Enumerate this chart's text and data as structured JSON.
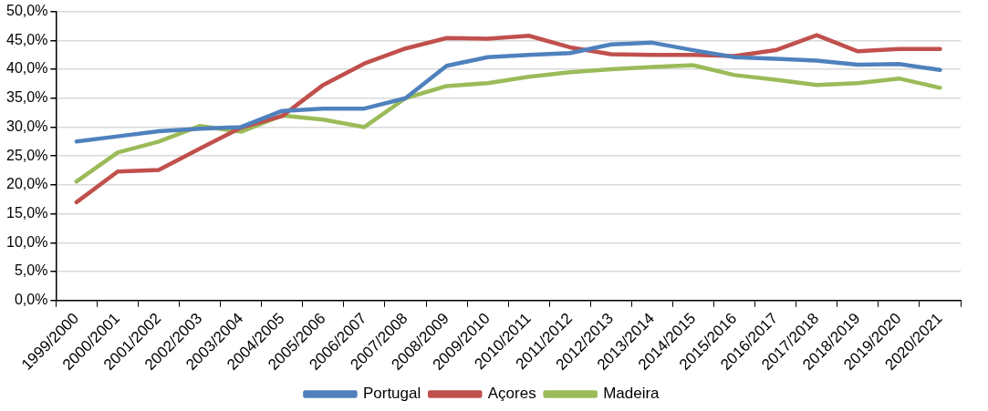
{
  "chart_data": {
    "type": "line",
    "categories": [
      "1999/2000",
      "2000/2001",
      "2001/2002",
      "2002/2003",
      "2003/2004",
      "2004/2005",
      "2005/2006",
      "2006/2007",
      "2007/2008",
      "2008/2009",
      "2009/2010",
      "2010/2011",
      "2011/2012",
      "2012/2013",
      "2013/2014",
      "2014/2015",
      "2015/2016",
      "2016/2017",
      "2017/2018",
      "2018/2019",
      "2019/2020",
      "2020/2021"
    ],
    "series": [
      {
        "name": "Portugal",
        "color": "#4f81bd",
        "values": [
          27.5,
          28.4,
          29.3,
          29.7,
          30.0,
          32.8,
          33.2,
          33.2,
          35.0,
          40.6,
          42.1,
          42.5,
          42.8,
          44.3,
          44.6,
          43.3,
          42.1,
          41.8,
          41.5,
          40.8,
          40.9,
          39.9
        ]
      },
      {
        "name": "Açores",
        "color": "#c0504d",
        "values": [
          17.0,
          22.3,
          22.6,
          26.3,
          29.9,
          31.9,
          37.3,
          41.0,
          43.6,
          45.4,
          45.3,
          45.8,
          43.8,
          42.6,
          42.5,
          42.5,
          42.3,
          43.3,
          45.9,
          43.1,
          43.5,
          43.5
        ]
      },
      {
        "name": "Madeira",
        "color": "#9bbb59",
        "values": [
          20.6,
          25.6,
          27.5,
          30.2,
          29.2,
          32.0,
          31.3,
          30.0,
          35.0,
          37.1,
          37.6,
          38.7,
          39.5,
          40.0,
          40.4,
          40.7,
          39.0,
          38.2,
          37.3,
          37.6,
          38.4,
          36.8
        ]
      }
    ],
    "ylim": [
      0,
      50
    ],
    "yticks": [
      {
        "value": 0,
        "label": "0,0%"
      },
      {
        "value": 5,
        "label": "5,0%"
      },
      {
        "value": 10,
        "label": "10,0%"
      },
      {
        "value": 15,
        "label": "15,0%"
      },
      {
        "value": 20,
        "label": "20,0%"
      },
      {
        "value": 25,
        "label": "25,0%"
      },
      {
        "value": 30,
        "label": "30,0%"
      },
      {
        "value": 35,
        "label": "35,0%"
      },
      {
        "value": 40,
        "label": "40,0%"
      },
      {
        "value": 45,
        "label": "45,0%"
      },
      {
        "value": 50,
        "label": "50,0%"
      }
    ],
    "grid": "y",
    "legend": "bottom",
    "marker": "none",
    "line_style": "solid"
  }
}
